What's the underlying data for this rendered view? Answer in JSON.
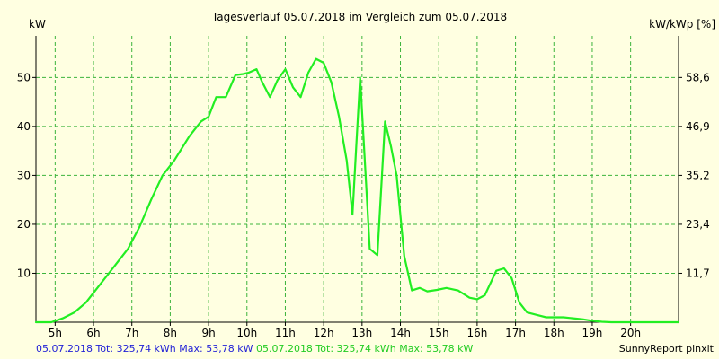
{
  "colors": {
    "background": "#ffffe1",
    "plot_background": "#ffffe1",
    "grid": "#3cb43c",
    "series": "#22ee22",
    "footer_series1": "#1f1fd6",
    "footer_series2": "#22cc22"
  },
  "footer": {
    "series1": "05.07.2018 Tot: 325,74 kWh Max: 53,78 kW",
    "series2": "05.07.2018 Tot: 325,74 kWh Max: 53,78 kW",
    "credit": "SunnyReport pinxit"
  },
  "chart_data": {
    "type": "line",
    "title": "Tagesverlauf 05.07.2018 im Vergleich zum 05.07.2018",
    "ylabel": "kW",
    "y2label": "kW/kWp [%]",
    "xlim": [
      4.5,
      21.25
    ],
    "ylim": [
      0,
      58.5
    ],
    "y2lim": [
      0,
      68.6
    ],
    "x_ticks": [
      5,
      6,
      7,
      8,
      9,
      10,
      11,
      12,
      13,
      14,
      15,
      16,
      17,
      18,
      19,
      20
    ],
    "x_tick_labels": [
      "5h",
      "6h",
      "7h",
      "8h",
      "9h",
      "10h",
      "11h",
      "12h",
      "13h",
      "14h",
      "15h",
      "16h",
      "17h",
      "18h",
      "19h",
      "20h"
    ],
    "y_ticks": [
      10,
      20,
      30,
      40,
      50
    ],
    "y2_tick_labels": [
      "11,7",
      "23,4",
      "35,2",
      "46,9",
      "58,6"
    ],
    "grid": true,
    "series": [
      {
        "x": [
          4.5,
          4.9,
          5.2,
          5.5,
          5.8,
          6.1,
          6.5,
          6.9,
          7.2,
          7.5,
          7.8,
          8.1,
          8.5,
          8.8,
          9.0,
          9.2,
          9.45,
          9.7,
          9.9,
          10.05,
          10.25,
          10.4,
          10.6,
          10.8,
          11.0,
          11.2,
          11.4,
          11.6,
          11.8,
          12.0,
          12.2,
          12.4,
          12.6,
          12.75,
          12.85,
          12.95,
          13.05,
          13.2,
          13.4,
          13.6,
          13.75,
          13.9,
          14.1,
          14.3,
          14.5,
          14.7,
          14.95,
          15.2,
          15.5,
          15.8,
          16.0,
          16.2,
          16.5,
          16.7,
          16.9,
          17.1,
          17.3,
          17.55,
          17.8,
          18.0,
          18.25,
          18.5,
          18.75,
          19.0,
          19.25,
          19.5,
          19.75,
          20.0,
          20.25,
          20.5,
          20.75,
          21.0,
          21.25
        ],
        "y": [
          0,
          0,
          0.8,
          2.0,
          4.0,
          7.0,
          11.0,
          15.0,
          19.5,
          25.0,
          30.0,
          33.0,
          38.0,
          41.0,
          42.0,
          46.0,
          46.0,
          50.5,
          50.7,
          51.0,
          51.7,
          49.0,
          46.0,
          49.5,
          51.7,
          48.0,
          46.0,
          51.0,
          53.8,
          53.0,
          49.0,
          42.0,
          33.0,
          22.0,
          36.0,
          50.0,
          36.0,
          15.0,
          13.7,
          41.0,
          36.0,
          30.0,
          13.5,
          6.5,
          7.0,
          6.3,
          6.6,
          7.0,
          6.5,
          5.0,
          4.7,
          5.5,
          10.5,
          11.0,
          9.0,
          4.0,
          2.0,
          1.5,
          1.0,
          1.0,
          1.0,
          0.8,
          0.6,
          0.3,
          0.1,
          0,
          0,
          0,
          0,
          0,
          0,
          0,
          0
        ]
      }
    ]
  }
}
